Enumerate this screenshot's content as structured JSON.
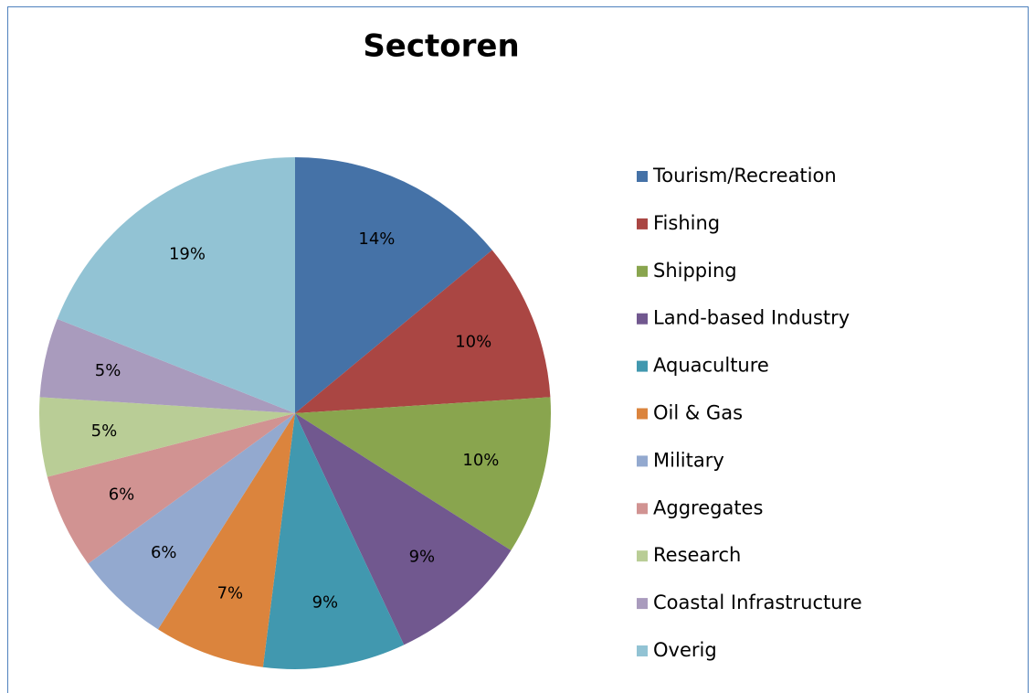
{
  "chart_data": {
    "type": "pie",
    "title": "Sectoren",
    "categories": [
      "Tourism/Recreation",
      "Fishing",
      "Shipping",
      "Land-based Industry",
      "Aquaculture",
      "Oil & Gas",
      "Military",
      "Aggregates",
      "Research",
      "Coastal Infrastructure",
      "Overig"
    ],
    "values": [
      14,
      10,
      10,
      9,
      9,
      7,
      6,
      6,
      5,
      5,
      19
    ],
    "value_labels": [
      "14%",
      "10%",
      "10%",
      "9%",
      "9%",
      "7%",
      "6%",
      "6%",
      "5%",
      "5%",
      "19%"
    ],
    "colors": [
      "#4572a7",
      "#aa4643",
      "#89a54e",
      "#71588f",
      "#4198af",
      "#db843d",
      "#93a9cf",
      "#d19392",
      "#b9cd96",
      "#a99bbd",
      "#92c3d4"
    ],
    "legend": "right"
  }
}
